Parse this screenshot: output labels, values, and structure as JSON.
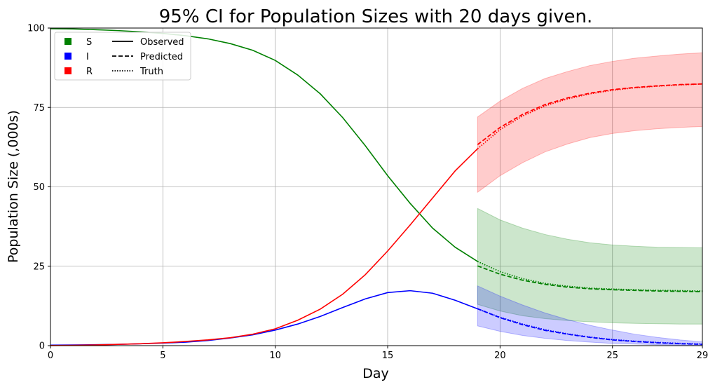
{
  "chart_data": {
    "type": "line",
    "title": "95% CI for Population Sizes with 20 days given.",
    "xlabel": "Day",
    "ylabel": "Population Size (,000s)",
    "xlim": [
      0,
      29
    ],
    "ylim": [
      0,
      100
    ],
    "xticks": [
      0,
      5,
      10,
      15,
      20,
      25,
      29
    ],
    "yticks": [
      0,
      25,
      50,
      75,
      100
    ],
    "grid": true,
    "legend_position": "top-left",
    "colors": {
      "S": "#008000",
      "I": "#0000ff",
      "R": "#ff0000"
    },
    "legend": {
      "series": [
        "S",
        "I",
        "R"
      ],
      "styles": [
        "Observed",
        "Predicted",
        "Truth"
      ]
    },
    "observed": {
      "x": [
        0,
        1,
        2,
        3,
        4,
        5,
        6,
        7,
        8,
        9,
        10,
        11,
        12,
        13,
        14,
        15,
        16,
        17,
        18,
        19
      ],
      "S": [
        99.8,
        99.7,
        99.5,
        99.2,
        98.8,
        98.3,
        97.6,
        96.6,
        95.1,
        93.0,
        89.8,
        85.2,
        79.3,
        71.8,
        63.0,
        53.5,
        44.8,
        37.0,
        31.0,
        26.5
      ],
      "I": [
        0.15,
        0.2,
        0.3,
        0.4,
        0.6,
        0.8,
        1.1,
        1.6,
        2.4,
        3.4,
        4.9,
        6.8,
        9.2,
        12.0,
        14.7,
        16.7,
        17.3,
        16.5,
        14.3,
        11.6
      ],
      "R": [
        0.05,
        0.1,
        0.2,
        0.4,
        0.6,
        0.9,
        1.3,
        1.8,
        2.5,
        3.6,
        5.3,
        8.0,
        11.5,
        16.2,
        22.3,
        29.8,
        38.0,
        46.5,
        55.0,
        62.0
      ]
    },
    "forecast": {
      "x": [
        19,
        20,
        21,
        22,
        23,
        24,
        25,
        26,
        27,
        28,
        29
      ],
      "S_predicted": [
        25.1,
        22.5,
        20.6,
        19.3,
        18.4,
        17.9,
        17.6,
        17.4,
        17.2,
        17.1,
        17.0
      ],
      "S_truth": [
        26.5,
        23.3,
        21.1,
        19.6,
        18.7,
        18.1,
        17.8,
        17.6,
        17.4,
        17.3,
        17.2
      ],
      "S_lower": [
        13.0,
        10.9,
        9.4,
        8.5,
        7.9,
        7.5,
        7.2,
        7.0,
        6.9,
        6.8,
        6.8
      ],
      "S_upper": [
        43.2,
        39.6,
        37.0,
        35.0,
        33.5,
        32.4,
        31.7,
        31.3,
        31.0,
        30.9,
        30.8
      ],
      "I_predicted": [
        11.6,
        8.8,
        6.6,
        4.8,
        3.6,
        2.6,
        1.8,
        1.3,
        0.9,
        0.6,
        0.4
      ],
      "I_truth": [
        11.6,
        8.9,
        6.8,
        5.0,
        3.7,
        2.7,
        1.9,
        1.4,
        1.0,
        0.7,
        0.5
      ],
      "I_lower": [
        6.2,
        4.5,
        3.2,
        2.3,
        1.6,
        1.1,
        0.7,
        0.5,
        0.3,
        0.2,
        0.1
      ],
      "I_upper": [
        18.8,
        15.6,
        12.8,
        10.3,
        8.2,
        6.4,
        4.9,
        3.6,
        2.6,
        1.8,
        1.2
      ],
      "R_predicted": [
        63.3,
        68.7,
        72.8,
        75.9,
        78.0,
        79.5,
        80.6,
        81.3,
        81.8,
        82.2,
        82.4
      ],
      "R_truth": [
        62.0,
        68.0,
        72.3,
        75.5,
        77.7,
        79.3,
        80.4,
        81.2,
        81.7,
        82.1,
        82.4
      ],
      "R_lower": [
        48.3,
        53.5,
        57.6,
        61.0,
        63.5,
        65.5,
        66.8,
        67.7,
        68.3,
        68.7,
        69.0
      ],
      "R_upper": [
        72.0,
        77.0,
        81.0,
        84.1,
        86.3,
        88.2,
        89.5,
        90.5,
        91.2,
        91.8,
        92.2
      ]
    }
  }
}
